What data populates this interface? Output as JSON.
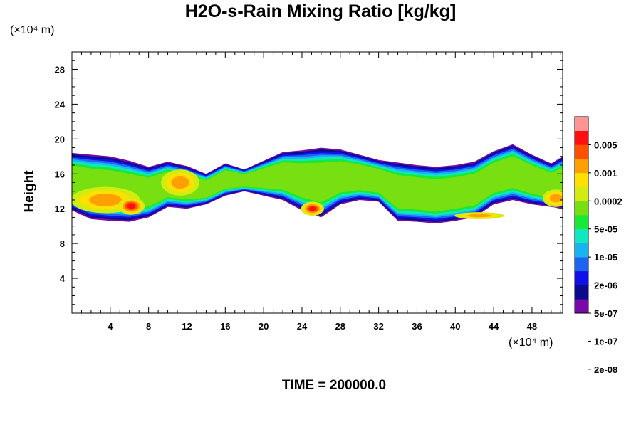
{
  "chart_data": {
    "type": "heatmap",
    "title": "H2O-s-Rain Mixing Ratio [kg/kg]",
    "ylabel": "Height",
    "xlabel": "",
    "y_unit": "(×10⁴ m)",
    "x_unit": "(×10⁴ m)",
    "xlim": [
      0,
      51.2
    ],
    "ylim": [
      0,
      30
    ],
    "x_ticks": [
      4,
      8,
      12,
      16,
      20,
      24,
      28,
      32,
      36,
      40,
      44,
      48
    ],
    "y_ticks": [
      4,
      8,
      12,
      16,
      20,
      24,
      28
    ],
    "colorbar": {
      "labels": [
        "0.005",
        "0.001",
        "0.0002",
        "5e-05",
        "1e-05",
        "2e-06",
        "5e-07",
        "1e-07",
        "2e-08"
      ],
      "colors": [
        "#7a0aa8",
        "#0a0a8c",
        "#1010e8",
        "#1e64f0",
        "#18b4f0",
        "#10e8c0",
        "#18e838",
        "#78e010",
        "#d2ec10",
        "#ffe000",
        "#ffa000",
        "#ff5000",
        "#ff1010",
        "#ff9494"
      ]
    },
    "layer": {
      "x": [
        0,
        2,
        4,
        6,
        8,
        10,
        12,
        14,
        16,
        18,
        20,
        22,
        24,
        26,
        28,
        30,
        32,
        34,
        36,
        38,
        40,
        42,
        44,
        46,
        48,
        50,
        51.2
      ],
      "top": [
        18.4,
        18.2,
        18.0,
        17.5,
        16.8,
        17.4,
        16.9,
        16.0,
        17.2,
        16.5,
        17.5,
        18.5,
        18.7,
        19.0,
        18.8,
        18.2,
        17.6,
        17.3,
        17.0,
        16.8,
        17.0,
        17.4,
        18.6,
        19.4,
        18.2,
        17.2,
        18.0
      ],
      "bottom": [
        11.8,
        10.8,
        10.6,
        10.5,
        11.0,
        12.2,
        12.0,
        12.5,
        13.5,
        14.0,
        13.5,
        13.0,
        11.8,
        11.0,
        12.5,
        13.0,
        12.8,
        10.6,
        10.5,
        10.3,
        10.6,
        11.0,
        12.5,
        13.0,
        12.5,
        12.2,
        12.0
      ]
    },
    "cores": [
      {
        "x": 3.5,
        "y": 13.0,
        "rx": 3.6,
        "ry": 1.5,
        "level": 10
      },
      {
        "x": 6.2,
        "y": 12.3,
        "rx": 1.4,
        "ry": 1.0,
        "level": 12
      },
      {
        "x": 11.3,
        "y": 15.0,
        "rx": 2.0,
        "ry": 1.5,
        "level": 10
      },
      {
        "x": 25.1,
        "y": 12.0,
        "rx": 1.2,
        "ry": 0.8,
        "level": 12
      },
      {
        "x": 42.5,
        "y": 11.2,
        "rx": 2.6,
        "ry": 0.4,
        "level": 10
      },
      {
        "x": 50.5,
        "y": 13.2,
        "rx": 1.4,
        "ry": 1.0,
        "level": 10
      }
    ],
    "time_label": "TIME = 200000.0"
  }
}
